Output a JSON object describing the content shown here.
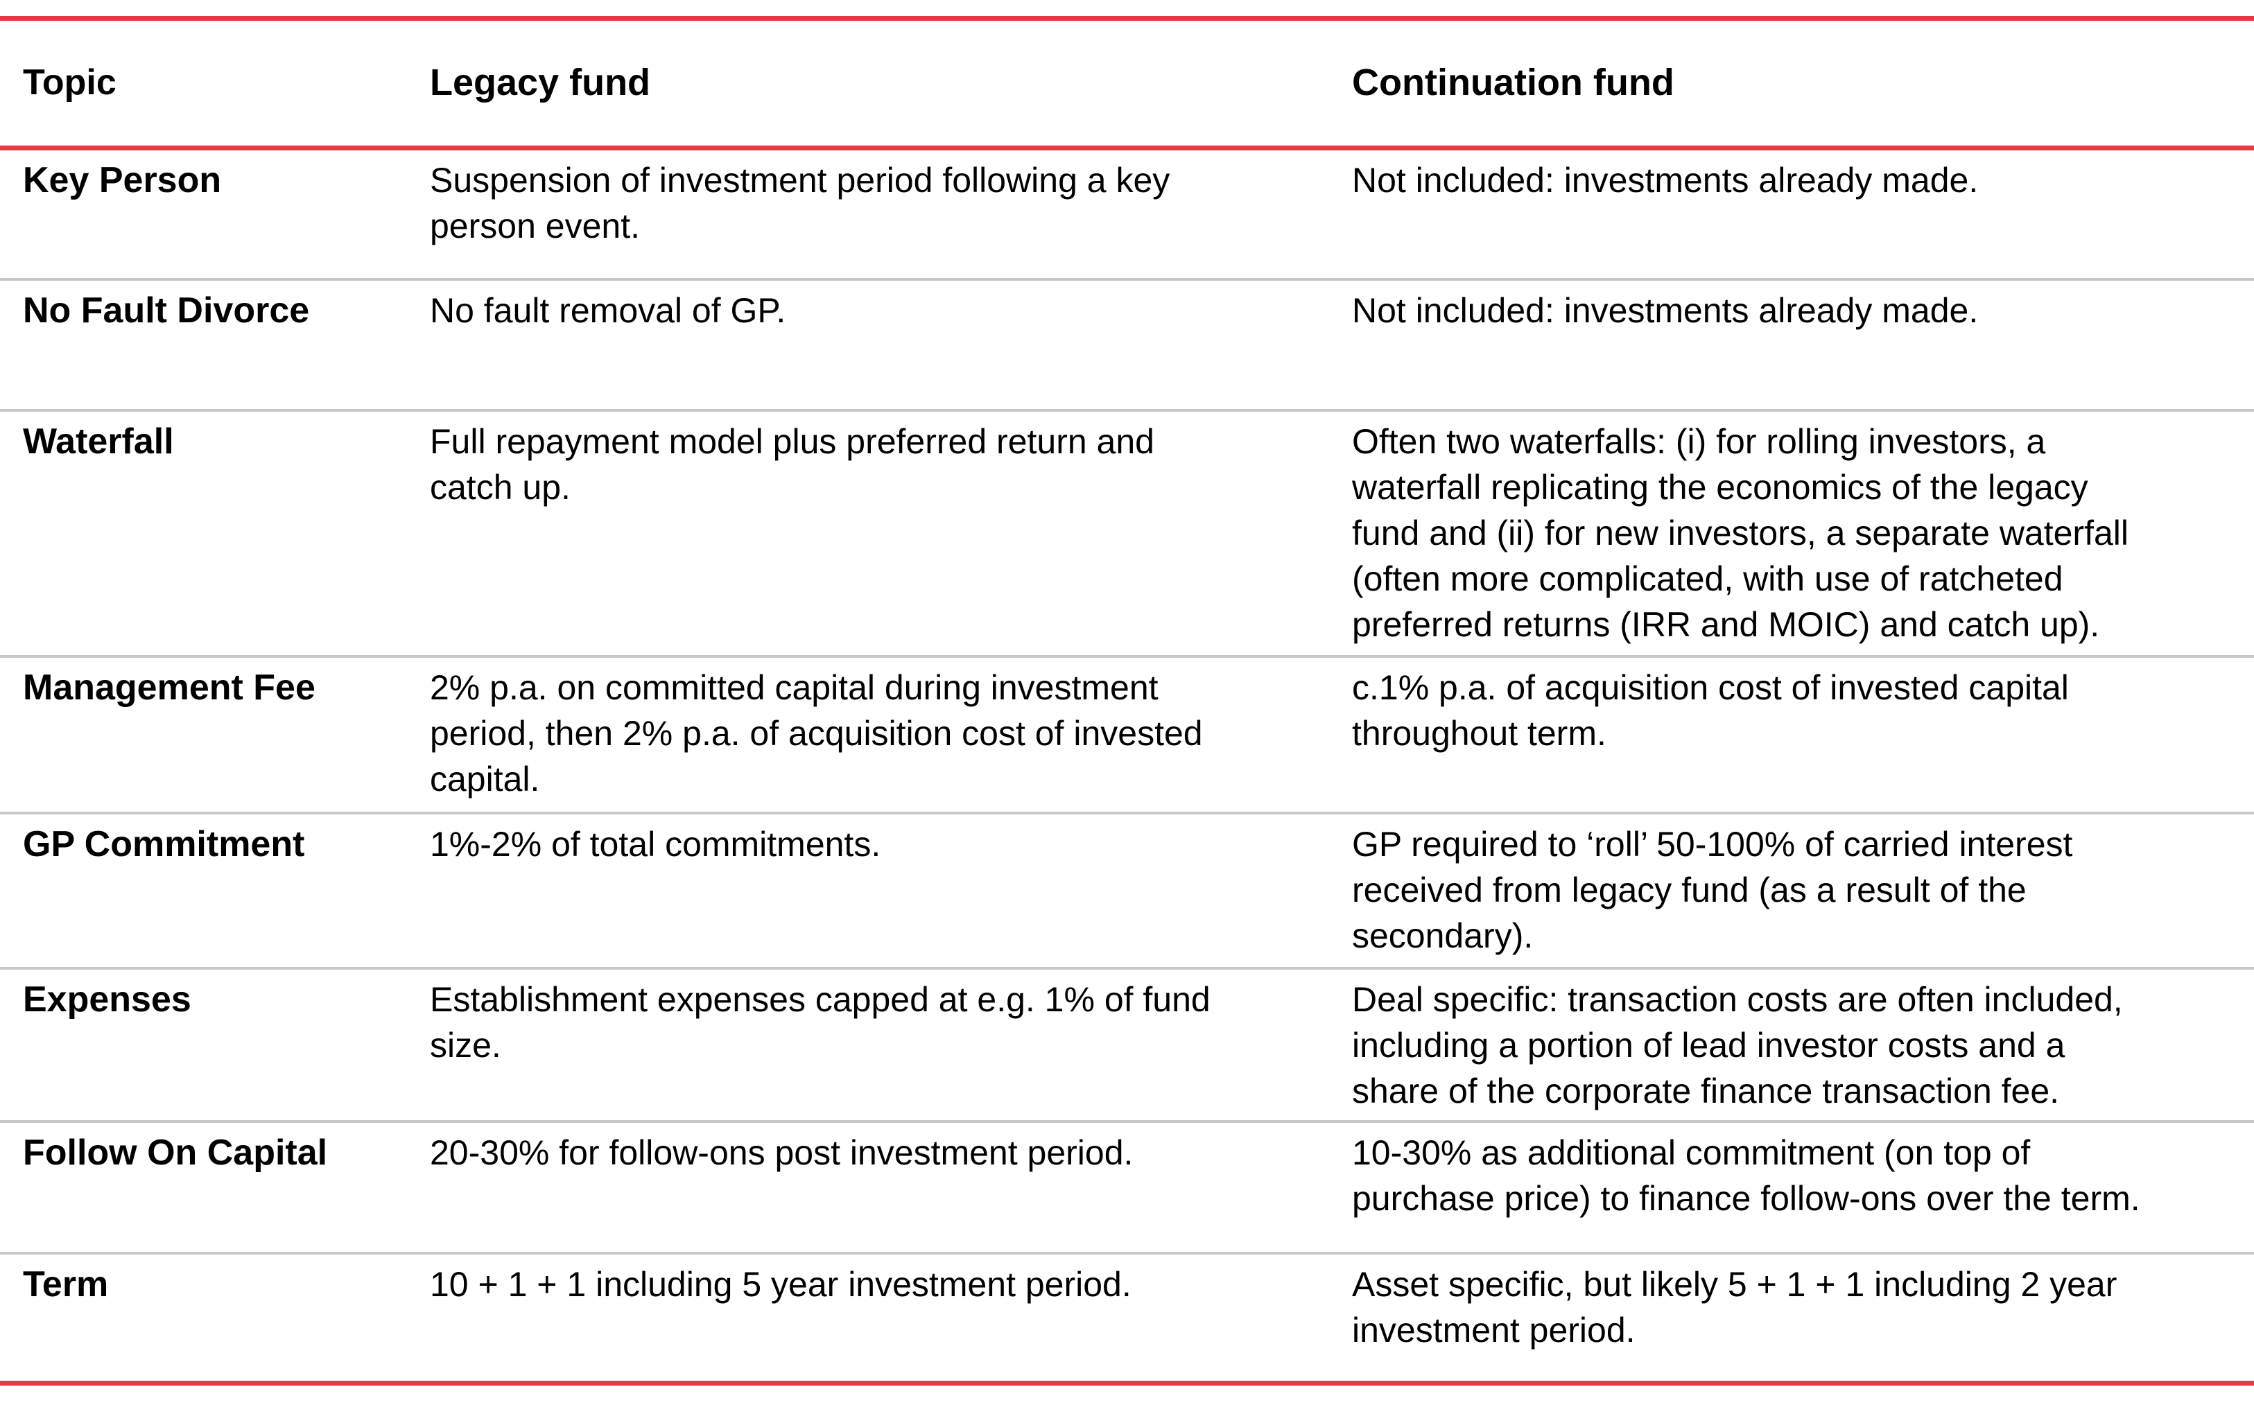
{
  "page": {
    "title": "Legacy fund vs Continuation fund comparison table"
  },
  "colors": {
    "accent_red": "#E93844",
    "divider_gray": "#C7C7C7",
    "text": "#000000",
    "background": "#FFFFFF"
  },
  "table": {
    "headers": {
      "topic": "Topic",
      "legacy": "Legacy fund",
      "continuation": "Continuation fund"
    },
    "rows": [
      {
        "topic": "Key Person",
        "legacy": "Suspension of investment period following a key\nperson event.",
        "continuation": "Not included: investments already made."
      },
      {
        "topic": "No Fault Divorce",
        "legacy": "No fault removal of GP.",
        "continuation": "Not included: investments already made."
      },
      {
        "topic": "Waterfall",
        "legacy": "Full repayment model plus preferred return and\ncatch up.",
        "continuation": "Often two waterfalls: (i) for rolling investors, a\nwaterfall replicating the economics of the legacy\nfund and (ii) for new investors, a separate waterfall\n(often more complicated, with use of ratcheted\npreferred returns (IRR and MOIC) and catch up)."
      },
      {
        "topic": "Management Fee",
        "legacy": "2% p.a. on committed capital during investment\nperiod, then 2% p.a. of acquisition cost of invested\ncapital.",
        "continuation": "c.1% p.a. of acquisition cost of invested capital\nthroughout term."
      },
      {
        "topic": "GP Commitment",
        "legacy": "1%-2% of total commitments.",
        "continuation": "GP required to ‘roll’ 50-100% of carried interest\nreceived from legacy fund (as a result of the\nsecondary)."
      },
      {
        "topic": "Expenses",
        "legacy": "Establishment expenses capped at e.g. 1% of fund\nsize.",
        "continuation": "Deal specific: transaction costs are often included,\nincluding a portion of lead investor costs and a\nshare of the corporate finance transaction fee."
      },
      {
        "topic": "Follow On Capital",
        "legacy": "20-30% for follow-ons post investment period.",
        "continuation": "10-30% as additional commitment (on top of\npurchase price) to finance follow-ons over the term."
      },
      {
        "topic": "Term",
        "legacy": "10 + 1 + 1 including 5 year investment period.",
        "continuation": "Asset specific, but likely 5 + 1 + 1 including 2 year\ninvestment period."
      }
    ]
  }
}
